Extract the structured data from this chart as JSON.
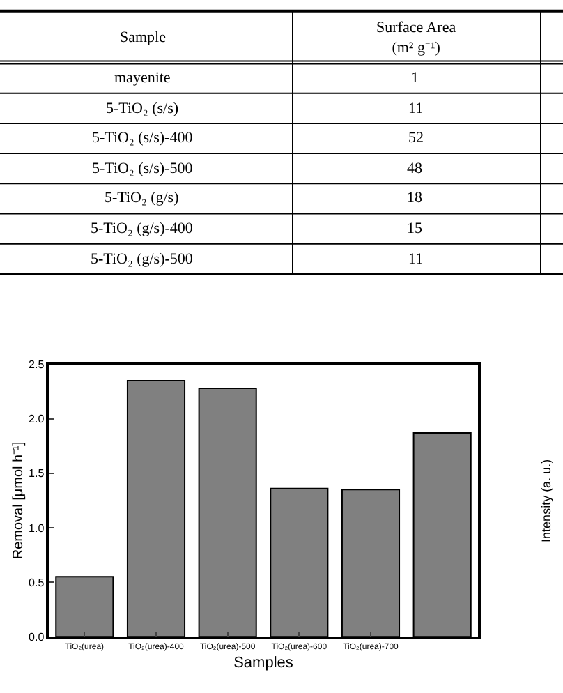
{
  "chart_data": [
    {
      "type": "other",
      "annotations": [
        "Sample",
        "Surface Area (m² g⁻¹)",
        "mayenite",
        "1",
        "5-TiO₂ (s/s)",
        "11",
        "5-TiO₂ (s/s)-400",
        "52",
        "5-TiO₂ (s/s)-500",
        "48",
        "5-TiO₂ (g/s)",
        "18",
        "5-TiO₂ (g/s)-400",
        "15",
        "5-TiO₂ (g/s)-500",
        "11"
      ]
    },
    {
      "type": "bar",
      "xlabel": "Samples",
      "ylabel": "Removal [μmol h⁻¹]",
      "categories": [
        "TiO₂(urea)",
        "TiO₂(urea)-400",
        "TiO₂(urea)-500",
        "TiO₂(urea)-600",
        "TiO₂(urea)-700",
        null
      ],
      "values": [
        0.55,
        2.35,
        2.28,
        1.36,
        1.35,
        1.87
      ],
      "color": "#808080",
      "ylim": [
        0,
        2.5
      ],
      "yticks": [
        {
          "value": 0,
          "label": "0.0"
        },
        {
          "value": 0.5,
          "label": "0.5"
        },
        {
          "value": 1,
          "label": "1.0"
        },
        {
          "value": 1.5,
          "label": "1.5"
        },
        {
          "value": 2,
          "label": "2.0"
        },
        {
          "value": 2.5,
          "label": "2.5"
        }
      ],
      "annotations": [
        "Intensity (a. u.)"
      ]
    }
  ]
}
